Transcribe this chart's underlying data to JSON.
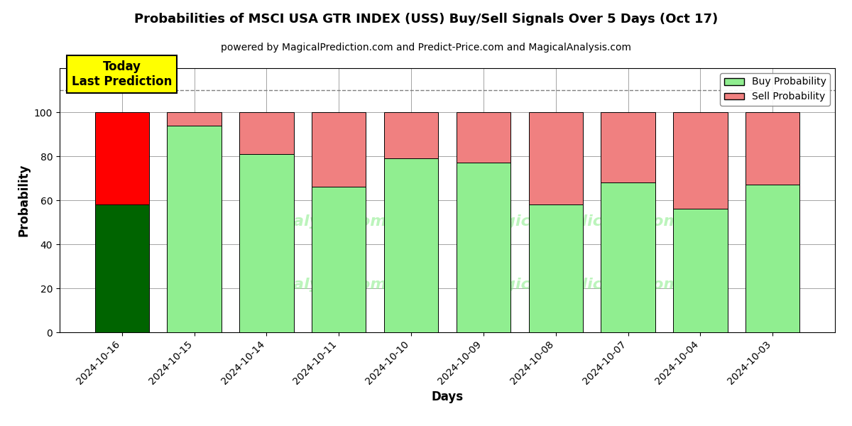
{
  "title": "Probabilities of MSCI USA GTR INDEX (USS) Buy/Sell Signals Over 5 Days (Oct 17)",
  "subtitle": "powered by MagicalPrediction.com and Predict-Price.com and MagicalAnalysis.com",
  "xlabel": "Days",
  "ylabel": "Probability",
  "dates": [
    "2024-10-16",
    "2024-10-15",
    "2024-10-14",
    "2024-10-11",
    "2024-10-10",
    "2024-10-09",
    "2024-10-08",
    "2024-10-07",
    "2024-10-04",
    "2024-10-03"
  ],
  "buy_values": [
    58,
    94,
    81,
    66,
    79,
    77,
    58,
    68,
    56,
    67
  ],
  "sell_values": [
    42,
    6,
    19,
    34,
    21,
    23,
    42,
    32,
    44,
    33
  ],
  "buy_colors": [
    "#006400",
    "#90EE90",
    "#90EE90",
    "#90EE90",
    "#90EE90",
    "#90EE90",
    "#90EE90",
    "#90EE90",
    "#90EE90",
    "#90EE90"
  ],
  "sell_colors": [
    "#FF0000",
    "#F08080",
    "#F08080",
    "#F08080",
    "#F08080",
    "#F08080",
    "#F08080",
    "#F08080",
    "#F08080",
    "#F08080"
  ],
  "today_label": "Today\nLast Prediction",
  "dashed_line_y": 110,
  "ylim": [
    0,
    120
  ],
  "yticks": [
    0,
    20,
    40,
    60,
    80,
    100
  ],
  "legend_buy_color": "#90EE90",
  "legend_sell_color": "#F08080",
  "background_color": "#ffffff",
  "bar_width": 0.75
}
